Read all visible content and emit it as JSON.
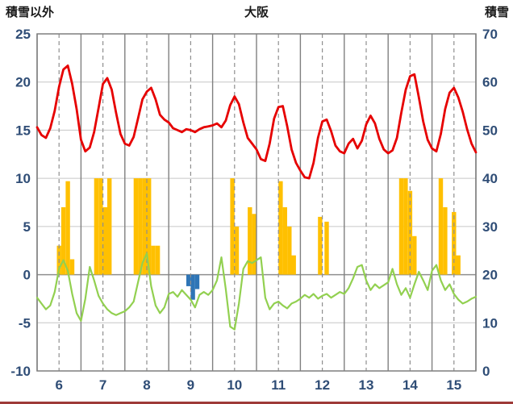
{
  "header": {
    "left_label": "積雪以外",
    "title": "大阪",
    "right_label": "積雪"
  },
  "colors": {
    "axis_text": "#2f4d76",
    "title_text": "#1a1a1a",
    "h_grid": "#c6c6c6",
    "zero_line": "#8f8f8f",
    "v_grid_solid": "#808080",
    "v_grid_dashed": "#8f8f8f",
    "frame": "#7f7f7f",
    "red_line": "#e60000",
    "green_line": "#92d050",
    "yellow_bar": "#ffc000",
    "blue_bar": "#2e75b6",
    "bottom_strip": "#9e3a38"
  },
  "chart_data": {
    "type": "line",
    "title": "大阪",
    "left_axis": {
      "label": "積雪以外",
      "min": -10,
      "max": 25,
      "step": 5,
      "ticks": [
        -10,
        -5,
        0,
        5,
        10,
        15,
        20,
        25
      ]
    },
    "right_axis": {
      "label": "積雪",
      "min": 0,
      "max": 70,
      "step": 10,
      "ticks": [
        0,
        10,
        20,
        30,
        40,
        50,
        60,
        70
      ]
    },
    "x": {
      "min": 0,
      "max": 10,
      "day_labels": [
        "6",
        "7",
        "8",
        "9",
        "10",
        "11",
        "12",
        "13",
        "14",
        "15"
      ]
    },
    "grid": {
      "horizontal": true,
      "vertical_solid_every_day": true,
      "vertical_dashed_half_day": true
    },
    "series": [
      {
        "name": "red-line",
        "type": "line",
        "color": "#e60000",
        "width": 2.8,
        "x_start": 0,
        "x_step": 0.1,
        "y": [
          15.3,
          14.5,
          14.2,
          15.2,
          17,
          19.5,
          21.3,
          21.7,
          19.8,
          17.2,
          14,
          12.8,
          13.2,
          14.8,
          17.3,
          19.8,
          20.4,
          19.2,
          16.8,
          14.6,
          13.6,
          13.4,
          14.3,
          16.2,
          18.2,
          19,
          19.4,
          18.2,
          16.6,
          16.1,
          15.8,
          15.2,
          15,
          14.8,
          15.1,
          15,
          14.8,
          15.1,
          15.3,
          15.4,
          15.5,
          15.7,
          15.3,
          16,
          17.6,
          18.5,
          17.7,
          15.8,
          14.2,
          13.6,
          13,
          12,
          11.8,
          13.6,
          16.2,
          17.4,
          17.5,
          15.4,
          13,
          11.6,
          10.8,
          10.1,
          10,
          11.6,
          14.2,
          15.9,
          16.1,
          14.9,
          13.4,
          12.8,
          12.6,
          13.6,
          14.1,
          13.1,
          13.9,
          15.6,
          16.5,
          15.7,
          14.1,
          13,
          12.6,
          12.9,
          14.2,
          16.8,
          19.2,
          20.6,
          20.8,
          18.4,
          15.9,
          14,
          13.1,
          12.8,
          14.6,
          17.2,
          18.9,
          19.4,
          18.4,
          16.9,
          15.1,
          13.6,
          12.7
        ]
      },
      {
        "name": "green-line",
        "type": "line",
        "color": "#92d050",
        "width": 2.2,
        "x_start": 0,
        "x_step": 0.1,
        "y": [
          -2.4,
          -3,
          -3.6,
          -3.2,
          -1.8,
          0.6,
          1.5,
          0.4,
          -2,
          -4,
          -4.8,
          -2.5,
          0.8,
          -0.6,
          -2.2,
          -3,
          -3.6,
          -4,
          -4.2,
          -4,
          -3.8,
          -3.4,
          -2.8,
          -0.8,
          1.2,
          2.2,
          -1.2,
          -3.2,
          -4,
          -3.4,
          -2,
          -1.8,
          -2.3,
          -1.6,
          -2.1,
          -2.6,
          -3.4,
          -2.1,
          -1.8,
          -2.1,
          -1.6,
          -0.6,
          1.8,
          -1.5,
          -5.4,
          -5.7,
          -3,
          0.6,
          1.4,
          1.2,
          1.5,
          1.8,
          -2.4,
          -3.6,
          -3,
          -2.8,
          -3.2,
          -3.5,
          -3,
          -2.8,
          -2.5,
          -2.1,
          -2.4,
          -2,
          -2.5,
          -2.2,
          -2,
          -2.4,
          -2.1,
          -1.8,
          -2,
          -1.4,
          -0.4,
          0.8,
          1,
          -0.6,
          -1.6,
          -1,
          -1.4,
          -1.1,
          -0.8,
          0.6,
          -1,
          -2.1,
          -1.4,
          -2.4,
          -1,
          0.3,
          -0.6,
          -1.6,
          0.4,
          1,
          -0.6,
          -1.6,
          -1,
          -2,
          -2.6,
          -3,
          -2.8,
          -2.5,
          -2.3
        ]
      },
      {
        "name": "yellow-bars",
        "type": "bar",
        "color": "#ffc000",
        "bar_width": 0.1,
        "points": [
          [
            0.5,
            3
          ],
          [
            0.6,
            7
          ],
          [
            0.7,
            9.7
          ],
          [
            0.8,
            1.6
          ],
          [
            1.35,
            10
          ],
          [
            1.45,
            10
          ],
          [
            1.55,
            7
          ],
          [
            1.65,
            10
          ],
          [
            2.25,
            10
          ],
          [
            2.35,
            10
          ],
          [
            2.45,
            10
          ],
          [
            2.55,
            10
          ],
          [
            2.65,
            3
          ],
          [
            2.75,
            3
          ],
          [
            4.45,
            10
          ],
          [
            4.55,
            5
          ],
          [
            4.85,
            7
          ],
          [
            4.95,
            6.3
          ],
          [
            5.55,
            9.7
          ],
          [
            5.65,
            7
          ],
          [
            5.75,
            5
          ],
          [
            5.85,
            2
          ],
          [
            6.45,
            6
          ],
          [
            6.6,
            5.5
          ],
          [
            8.3,
            10
          ],
          [
            8.4,
            10
          ],
          [
            8.5,
            8.7
          ],
          [
            8.6,
            4
          ],
          [
            9.2,
            10
          ],
          [
            9.3,
            7
          ],
          [
            9.5,
            6.5
          ],
          [
            9.6,
            2
          ]
        ]
      },
      {
        "name": "blue-bars",
        "type": "bar",
        "color": "#2e75b6",
        "bar_width": 0.1,
        "points": [
          [
            3.45,
            -1.2
          ],
          [
            3.55,
            -2.6
          ],
          [
            3.65,
            -1.5
          ]
        ]
      }
    ]
  }
}
